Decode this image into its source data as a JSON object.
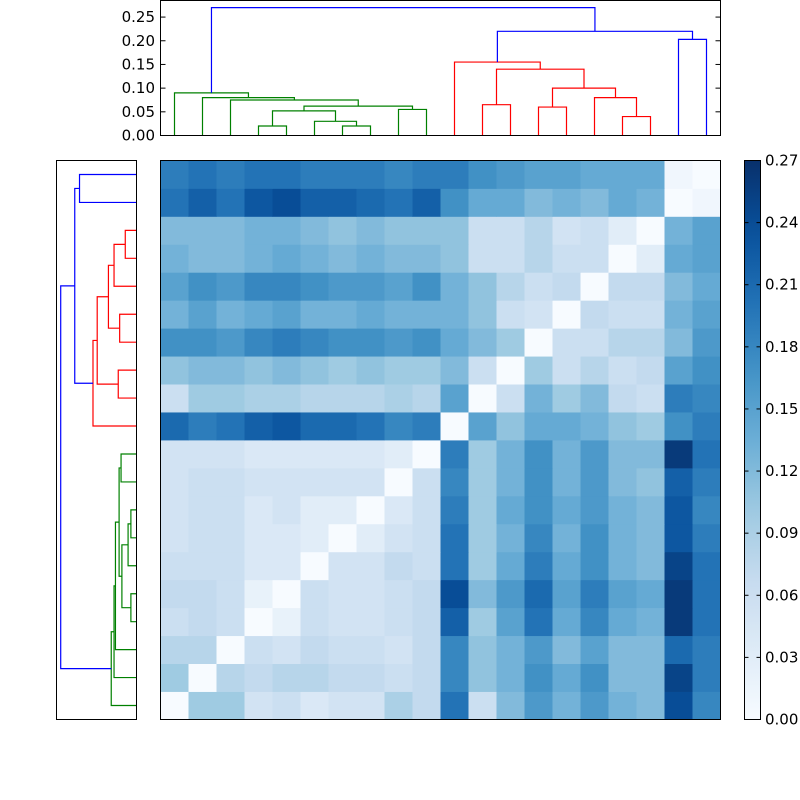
{
  "chart_data": {
    "type": "heatmap",
    "title": "",
    "xlabel": "",
    "ylabel": "",
    "size": 20,
    "clim": [
      0,
      0.27
    ],
    "colormap": "Blues",
    "colorbar": {
      "location": "right",
      "ticks": [
        0.0,
        0.03,
        0.06,
        0.09,
        0.12,
        0.15,
        0.18,
        0.21,
        0.24,
        0.27
      ],
      "tick_labels": [
        "0.00",
        "0.03",
        "0.06",
        "0.09",
        "0.12",
        "0.15",
        "0.18",
        "0.21",
        "0.24",
        "0.27"
      ]
    },
    "top_dendrogram": {
      "ylim": [
        0,
        0.285
      ],
      "y_ticks": [
        0.0,
        0.05,
        0.1,
        0.15,
        0.2,
        0.25
      ],
      "y_tick_labels": [
        "0.00",
        "0.05",
        "0.10",
        "0.15",
        "0.20",
        "0.25"
      ]
    },
    "dendrogram": {
      "links": [
        {
          "a": 3,
          "b": 4,
          "h": 0.02,
          "color": "#008000"
        },
        {
          "a": 6,
          "b": 7,
          "h": 0.02,
          "color": "#008000"
        },
        {
          "a": 5,
          "b": "n1",
          "h": 0.03,
          "color": "#008000"
        },
        {
          "a": "n0",
          "b": "n2",
          "h": 0.052,
          "color": "#008000"
        },
        {
          "a": 8,
          "b": 9,
          "h": 0.055,
          "color": "#008000"
        },
        {
          "a": "n3",
          "b": "n4",
          "h": 0.062,
          "color": "#008000"
        },
        {
          "a": 2,
          "b": "n5",
          "h": 0.075,
          "color": "#008000"
        },
        {
          "a": 1,
          "b": "n6",
          "h": 0.08,
          "color": "#008000"
        },
        {
          "a": 0,
          "b": "n7",
          "h": 0.09,
          "color": "#008000"
        },
        {
          "a": 11,
          "b": 12,
          "h": 0.065,
          "color": "#ff0000"
        },
        {
          "a": 13,
          "b": 14,
          "h": 0.06,
          "color": "#ff0000"
        },
        {
          "a": 16,
          "b": 17,
          "h": 0.04,
          "color": "#ff0000"
        },
        {
          "a": 15,
          "b": "n11",
          "h": 0.08,
          "color": "#ff0000"
        },
        {
          "a": "n10",
          "b": "n12",
          "h": 0.1,
          "color": "#ff0000"
        },
        {
          "a": "n9",
          "b": "n13",
          "h": 0.14,
          "color": "#ff0000"
        },
        {
          "a": 10,
          "b": "n14",
          "h": 0.155,
          "color": "#ff0000"
        },
        {
          "a": 18,
          "b": 19,
          "h": 0.203,
          "color": "#0000ff"
        },
        {
          "a": "n15",
          "b": "n16",
          "h": 0.22,
          "color": "#0000ff"
        },
        {
          "a": "n8",
          "b": "n17",
          "h": 0.27,
          "color": "#0000ff"
        }
      ]
    },
    "matrix": [
      [
        0.0,
        0.1,
        0.1,
        0.05,
        0.06,
        0.04,
        0.05,
        0.05,
        0.09,
        0.07,
        0.2,
        0.06,
        0.12,
        0.16,
        0.13,
        0.16,
        0.13,
        0.12,
        0.24,
        0.18
      ],
      [
        0.1,
        0.0,
        0.08,
        0.07,
        0.08,
        0.08,
        0.07,
        0.07,
        0.06,
        0.07,
        0.18,
        0.11,
        0.13,
        0.17,
        0.14,
        0.17,
        0.12,
        0.12,
        0.25,
        0.19
      ],
      [
        0.08,
        0.08,
        0.0,
        0.06,
        0.05,
        0.07,
        0.06,
        0.06,
        0.05,
        0.07,
        0.18,
        0.11,
        0.13,
        0.16,
        0.12,
        0.15,
        0.12,
        0.12,
        0.21,
        0.19
      ],
      [
        0.06,
        0.07,
        0.06,
        0.0,
        0.02,
        0.06,
        0.05,
        0.05,
        0.06,
        0.07,
        0.22,
        0.1,
        0.15,
        0.2,
        0.14,
        0.18,
        0.14,
        0.13,
        0.26,
        0.2
      ],
      [
        0.07,
        0.07,
        0.06,
        0.02,
        0.0,
        0.06,
        0.05,
        0.05,
        0.06,
        0.07,
        0.24,
        0.12,
        0.16,
        0.21,
        0.15,
        0.19,
        0.15,
        0.14,
        0.26,
        0.2
      ],
      [
        0.06,
        0.06,
        0.06,
        0.04,
        0.04,
        0.0,
        0.05,
        0.05,
        0.07,
        0.06,
        0.2,
        0.1,
        0.14,
        0.19,
        0.14,
        0.17,
        0.13,
        0.12,
        0.25,
        0.2
      ],
      [
        0.05,
        0.06,
        0.06,
        0.04,
        0.04,
        0.03,
        0.0,
        0.03,
        0.05,
        0.06,
        0.2,
        0.1,
        0.13,
        0.18,
        0.13,
        0.17,
        0.13,
        0.12,
        0.23,
        0.19
      ],
      [
        0.05,
        0.06,
        0.06,
        0.04,
        0.05,
        0.03,
        0.03,
        0.0,
        0.04,
        0.06,
        0.19,
        0.1,
        0.14,
        0.17,
        0.14,
        0.16,
        0.13,
        0.12,
        0.23,
        0.18
      ],
      [
        0.05,
        0.06,
        0.06,
        0.05,
        0.05,
        0.05,
        0.05,
        0.05,
        0.0,
        0.06,
        0.18,
        0.1,
        0.13,
        0.17,
        0.13,
        0.16,
        0.12,
        0.11,
        0.22,
        0.19
      ],
      [
        0.05,
        0.05,
        0.05,
        0.04,
        0.04,
        0.04,
        0.04,
        0.04,
        0.03,
        0.0,
        0.19,
        0.1,
        0.13,
        0.17,
        0.13,
        0.16,
        0.12,
        0.12,
        0.26,
        0.2
      ],
      [
        0.21,
        0.19,
        0.2,
        0.22,
        0.23,
        0.21,
        0.21,
        0.2,
        0.18,
        0.19,
        0.0,
        0.15,
        0.11,
        0.14,
        0.14,
        0.13,
        0.11,
        0.1,
        0.17,
        0.19
      ],
      [
        0.06,
        0.1,
        0.1,
        0.09,
        0.09,
        0.08,
        0.08,
        0.08,
        0.09,
        0.08,
        0.15,
        0.0,
        0.06,
        0.13,
        0.1,
        0.12,
        0.07,
        0.06,
        0.19,
        0.18
      ],
      [
        0.11,
        0.12,
        0.12,
        0.11,
        0.12,
        0.11,
        0.1,
        0.11,
        0.1,
        0.1,
        0.12,
        0.06,
        0.0,
        0.1,
        0.06,
        0.08,
        0.06,
        0.07,
        0.15,
        0.17
      ],
      [
        0.17,
        0.17,
        0.16,
        0.18,
        0.19,
        0.18,
        0.17,
        0.17,
        0.16,
        0.17,
        0.14,
        0.12,
        0.1,
        0.0,
        0.06,
        0.06,
        0.08,
        0.08,
        0.12,
        0.16
      ],
      [
        0.13,
        0.15,
        0.13,
        0.14,
        0.15,
        0.13,
        0.13,
        0.14,
        0.13,
        0.13,
        0.13,
        0.11,
        0.06,
        0.05,
        0.0,
        0.07,
        0.06,
        0.06,
        0.13,
        0.15
      ],
      [
        0.15,
        0.17,
        0.16,
        0.18,
        0.18,
        0.17,
        0.16,
        0.16,
        0.15,
        0.17,
        0.13,
        0.11,
        0.08,
        0.06,
        0.07,
        0.0,
        0.07,
        0.07,
        0.12,
        0.14
      ],
      [
        0.13,
        0.12,
        0.12,
        0.13,
        0.14,
        0.13,
        0.12,
        0.13,
        0.12,
        0.12,
        0.11,
        0.06,
        0.06,
        0.08,
        0.06,
        0.06,
        0.0,
        0.03,
        0.14,
        0.15
      ],
      [
        0.12,
        0.12,
        0.12,
        0.13,
        0.13,
        0.12,
        0.11,
        0.12,
        0.11,
        0.11,
        0.11,
        0.06,
        0.06,
        0.08,
        0.05,
        0.06,
        0.03,
        0.0,
        0.13,
        0.15
      ],
      [
        0.2,
        0.22,
        0.2,
        0.23,
        0.24,
        0.22,
        0.22,
        0.21,
        0.2,
        0.22,
        0.17,
        0.14,
        0.14,
        0.12,
        0.13,
        0.12,
        0.14,
        0.13,
        0.0,
        0.01
      ],
      [
        0.19,
        0.2,
        0.19,
        0.2,
        0.2,
        0.19,
        0.19,
        0.19,
        0.18,
        0.19,
        0.19,
        0.17,
        0.16,
        0.15,
        0.15,
        0.14,
        0.14,
        0.14,
        0.01,
        0.0
      ]
    ]
  }
}
